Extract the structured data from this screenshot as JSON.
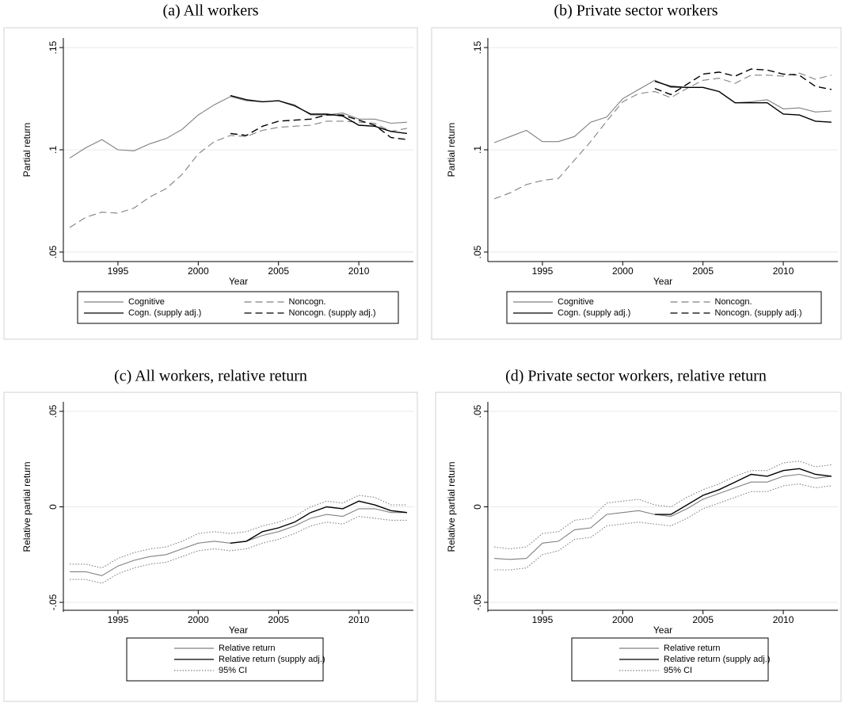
{
  "chart_data": [
    {
      "type": "line",
      "title": "(a) All workers",
      "x_label": "Year",
      "y_label": "Partial return",
      "x": [
        1992,
        1993,
        1994,
        1995,
        1996,
        1997,
        1998,
        1999,
        2000,
        2001,
        2002,
        2003,
        2004,
        2005,
        2006,
        2007,
        2008,
        2009,
        2010,
        2011,
        2012,
        2013
      ],
      "xlim": [
        1991.6,
        2013.4
      ],
      "xticks": [
        1995,
        2000,
        2005,
        2010
      ],
      "ylim": [
        0.05,
        0.15
      ],
      "yticks": [
        {
          "value": 0.05,
          "label": ".05"
        },
        {
          "value": 0.1,
          "label": ".1"
        },
        {
          "value": 0.15,
          "label": ".15"
        }
      ],
      "grid": true,
      "legend_columns": 2,
      "series": [
        {
          "name": "Cognitive",
          "color": "#808080",
          "style": "solid",
          "values": [
            0.096,
            0.101,
            0.105,
            0.1,
            0.0995,
            0.103,
            0.1055,
            0.11,
            0.117,
            0.122,
            0.126,
            0.124,
            0.1235,
            0.124,
            0.122,
            0.117,
            0.117,
            0.118,
            0.115,
            0.115,
            0.113,
            0.1135
          ]
        },
        {
          "name": "Noncogn.",
          "color": "#808080",
          "style": "dashed",
          "values": [
            0.062,
            0.067,
            0.0695,
            0.069,
            0.0715,
            0.077,
            0.081,
            0.088,
            0.098,
            0.104,
            0.107,
            0.1065,
            0.1095,
            0.111,
            0.1115,
            0.112,
            0.114,
            0.114,
            0.1135,
            0.113,
            0.109,
            0.1105
          ]
        },
        {
          "name": "Cogn. (supply adj.)",
          "color": "#000000",
          "style": "solid",
          "values": [
            null,
            null,
            null,
            null,
            null,
            null,
            null,
            null,
            null,
            null,
            0.1265,
            0.1245,
            0.1235,
            0.124,
            0.1215,
            0.1175,
            0.1175,
            0.1165,
            0.112,
            0.1115,
            0.109,
            0.108
          ]
        },
        {
          "name": "Noncogn. (supply adj.)",
          "color": "#000000",
          "style": "dashed",
          "values": [
            null,
            null,
            null,
            null,
            null,
            null,
            null,
            null,
            null,
            null,
            0.108,
            0.107,
            0.1115,
            0.114,
            0.1145,
            0.115,
            0.117,
            0.117,
            0.1145,
            0.112,
            0.106,
            0.105
          ]
        }
      ]
    },
    {
      "type": "line",
      "title": "(b) Private sector workers",
      "x_label": "Year",
      "y_label": "Partial return",
      "x": [
        1992,
        1993,
        1994,
        1995,
        1996,
        1997,
        1998,
        1999,
        2000,
        2001,
        2002,
        2003,
        2004,
        2005,
        2006,
        2007,
        2008,
        2009,
        2010,
        2011,
        2012,
        2013
      ],
      "xlim": [
        1991.6,
        2013.4
      ],
      "xticks": [
        1995,
        2000,
        2005,
        2010
      ],
      "ylim": [
        0.05,
        0.15
      ],
      "yticks": [
        {
          "value": 0.05,
          "label": ".05"
        },
        {
          "value": 0.1,
          "label": ".1"
        },
        {
          "value": 0.15,
          "label": ".15"
        }
      ],
      "grid": true,
      "legend_columns": 2,
      "series": [
        {
          "name": "Cognitive",
          "color": "#808080",
          "style": "solid",
          "values": [
            0.1035,
            0.1065,
            0.1095,
            0.104,
            0.104,
            0.1065,
            0.1135,
            0.116,
            0.125,
            0.1295,
            0.134,
            0.1305,
            0.1305,
            0.1305,
            0.1285,
            0.123,
            0.1235,
            0.1245,
            0.12,
            0.1205,
            0.1185,
            0.119
          ]
        },
        {
          "name": "Noncogn.",
          "color": "#808080",
          "style": "dashed",
          "values": [
            0.076,
            0.079,
            0.083,
            0.085,
            0.086,
            0.095,
            0.104,
            0.114,
            0.1235,
            0.1275,
            0.1285,
            0.1255,
            0.13,
            0.134,
            0.135,
            0.1325,
            0.1365,
            0.1365,
            0.136,
            0.1375,
            0.1345,
            0.1365
          ]
        },
        {
          "name": "Cogn. (supply adj.)",
          "color": "#000000",
          "style": "solid",
          "values": [
            null,
            null,
            null,
            null,
            null,
            null,
            null,
            null,
            null,
            null,
            0.1335,
            0.131,
            0.1305,
            0.1305,
            0.1285,
            0.123,
            0.123,
            0.123,
            0.1175,
            0.117,
            0.114,
            0.1135
          ]
        },
        {
          "name": "Noncogn. (supply adj.)",
          "color": "#000000",
          "style": "dashed",
          "values": [
            null,
            null,
            null,
            null,
            null,
            null,
            null,
            null,
            null,
            null,
            0.13,
            0.127,
            0.132,
            0.137,
            0.138,
            0.136,
            0.1395,
            0.139,
            0.137,
            0.1365,
            0.131,
            0.1295
          ]
        }
      ]
    },
    {
      "type": "line",
      "title": "(c) All workers, relative return",
      "x_label": "Year",
      "y_label": "Relative partial return",
      "x": [
        1992,
        1993,
        1994,
        1995,
        1996,
        1997,
        1998,
        1999,
        2000,
        2001,
        2002,
        2003,
        2004,
        2005,
        2006,
        2007,
        2008,
        2009,
        2010,
        2011,
        2012,
        2013
      ],
      "xlim": [
        1991.6,
        2013.4
      ],
      "xticks": [
        1995,
        2000,
        2005,
        2010
      ],
      "ylim": [
        -0.05,
        0.05
      ],
      "yticks": [
        {
          "value": -0.05,
          "label": "-.05"
        },
        0,
        {
          "value": 0.05,
          "label": ".05"
        }
      ],
      "grid": true,
      "legend_columns": 1,
      "series": [
        {
          "name": "Relative return",
          "color": "#808080",
          "style": "solid",
          "values": [
            -0.034,
            -0.034,
            -0.036,
            -0.031,
            -0.028,
            -0.026,
            -0.025,
            -0.022,
            -0.019,
            -0.018,
            -0.019,
            -0.018,
            -0.015,
            -0.013,
            -0.01,
            -0.006,
            -0.004,
            -0.005,
            -0.001,
            -0.001,
            -0.003,
            -0.003
          ]
        },
        {
          "name": "Relative return (supply adj.)",
          "color": "#000000",
          "style": "solid",
          "values": [
            null,
            null,
            null,
            null,
            null,
            null,
            null,
            null,
            null,
            null,
            -0.019,
            -0.018,
            -0.013,
            -0.011,
            -0.008,
            -0.003,
            0,
            -0.001,
            0.003,
            0.001,
            -0.002,
            -0.003
          ]
        },
        {
          "name": "95% CI",
          "color": "#808080",
          "style": "dotted",
          "values": [
            -0.03,
            -0.03,
            -0.032,
            -0.027,
            -0.024,
            -0.022,
            -0.021,
            -0.018,
            -0.014,
            -0.013,
            -0.014,
            -0.013,
            -0.01,
            -0.008,
            -0.005,
            0,
            0.003,
            0.002,
            0.006,
            0.005,
            0.001,
            0.001
          ],
          "lower": [
            -0.038,
            -0.038,
            -0.04,
            -0.035,
            -0.032,
            -0.03,
            -0.029,
            -0.026,
            -0.023,
            -0.022,
            -0.023,
            -0.022,
            -0.019,
            -0.017,
            -0.014,
            -0.01,
            -0.008,
            -0.009,
            -0.005,
            -0.006,
            -0.007,
            -0.007
          ]
        }
      ]
    },
    {
      "type": "line",
      "title": "(d) Private sector workers, relative return",
      "x_label": "Year",
      "y_label": "Relative partial return",
      "x": [
        1992,
        1993,
        1994,
        1995,
        1996,
        1997,
        1998,
        1999,
        2000,
        2001,
        2002,
        2003,
        2004,
        2005,
        2006,
        2007,
        2008,
        2009,
        2010,
        2011,
        2012,
        2013
      ],
      "xlim": [
        1991.6,
        2013.4
      ],
      "xticks": [
        1995,
        2000,
        2005,
        2010
      ],
      "ylim": [
        -0.05,
        0.05
      ],
      "yticks": [
        {
          "value": -0.05,
          "label": "-.05"
        },
        0,
        {
          "value": 0.05,
          "label": ".05"
        }
      ],
      "grid": true,
      "legend_columns": 1,
      "series": [
        {
          "name": "Relative return",
          "color": "#808080",
          "style": "solid",
          "values": [
            -0.027,
            -0.0275,
            -0.027,
            -0.019,
            -0.018,
            -0.012,
            -0.011,
            -0.004,
            -0.003,
            -0.002,
            -0.004,
            -0.005,
            -0.001,
            0.004,
            0.007,
            0.01,
            0.013,
            0.013,
            0.016,
            0.017,
            0.015,
            0.016
          ]
        },
        {
          "name": "Relative return (supply adj.)",
          "color": "#000000",
          "style": "solid",
          "values": [
            null,
            null,
            null,
            null,
            null,
            null,
            null,
            null,
            null,
            null,
            -0.004,
            -0.004,
            0.001,
            0.006,
            0.009,
            0.013,
            0.017,
            0.016,
            0.019,
            0.02,
            0.017,
            0.016
          ]
        },
        {
          "name": "95% CI",
          "color": "#808080",
          "style": "dotted",
          "values": [
            -0.021,
            -0.022,
            -0.021,
            -0.014,
            -0.013,
            -0.007,
            -0.006,
            0.002,
            0.003,
            0.004,
            0.001,
            0,
            0.005,
            0.009,
            0.012,
            0.016,
            0.019,
            0.019,
            0.023,
            0.024,
            0.021,
            0.022
          ],
          "lower": [
            -0.033,
            -0.033,
            -0.032,
            -0.025,
            -0.023,
            -0.017,
            -0.016,
            -0.01,
            -0.009,
            -0.008,
            -0.009,
            -0.01,
            -0.006,
            -0.001,
            0.002,
            0.005,
            0.008,
            0.008,
            0.011,
            0.012,
            0.01,
            0.011
          ]
        }
      ]
    }
  ]
}
